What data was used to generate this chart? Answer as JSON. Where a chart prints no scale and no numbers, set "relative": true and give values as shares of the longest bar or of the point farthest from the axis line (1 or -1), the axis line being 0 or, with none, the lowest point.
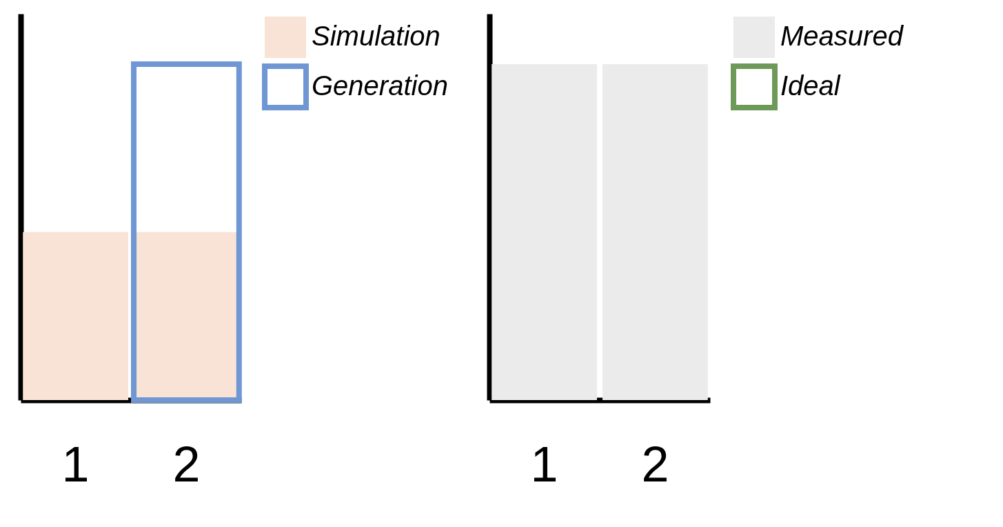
{
  "chart_data": [
    {
      "type": "bar",
      "relative": true,
      "categories": [
        "1",
        "2"
      ],
      "legend": "right",
      "series": [
        {
          "name": "Simulation",
          "color": "#f9e2d6",
          "values": [
            0.5,
            0.5
          ]
        },
        {
          "name": "Generation",
          "color": "#6f97d4",
          "values": [
            null,
            1
          ]
        }
      ]
    },
    {
      "type": "bar",
      "relative": true,
      "categories": [
        "1",
        "2"
      ],
      "legend": "right",
      "series": [
        {
          "name": "Measured",
          "color": "#ebebeb",
          "values": [
            1,
            1
          ]
        },
        {
          "name": "Ideal",
          "color": "#6e9a59",
          "values": [
            null,
            null
          ]
        }
      ]
    }
  ]
}
